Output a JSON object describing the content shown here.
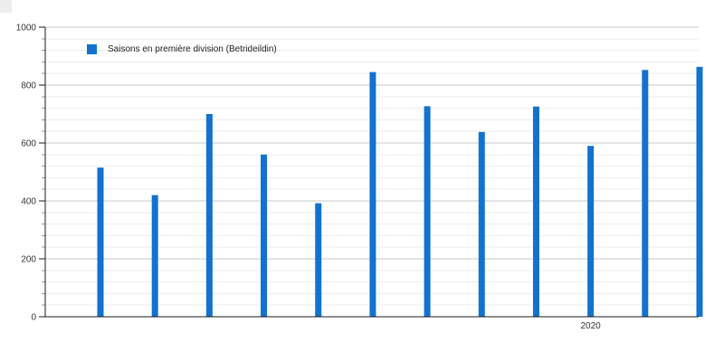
{
  "chart_data": {
    "type": "bar",
    "title": "",
    "legend_position": "top-left",
    "series": [
      {
        "name": "Saisons en première division (Betrideildin)",
        "values": [
          515,
          420,
          700,
          560,
          392,
          845,
          727,
          638,
          726,
          590,
          852,
          863
        ]
      }
    ],
    "x_tick_labels": [
      "",
      "",
      "",
      "",
      "",
      "",
      "",
      "",
      "",
      "2020",
      "",
      ""
    ],
    "xlabel": "",
    "ylabel": "",
    "ylim": [
      0,
      1000
    ],
    "y_ticks": [
      0,
      200,
      400,
      600,
      800,
      1000
    ],
    "minor_grid_step": 40,
    "grid": "major and minor horizontal gridlines",
    "colors": {
      "bar": "#1272ce",
      "grid_major": "#c9c9c9",
      "grid_minor": "#ebebeb",
      "axis": "#1a1a1a",
      "text": "#333333"
    }
  }
}
